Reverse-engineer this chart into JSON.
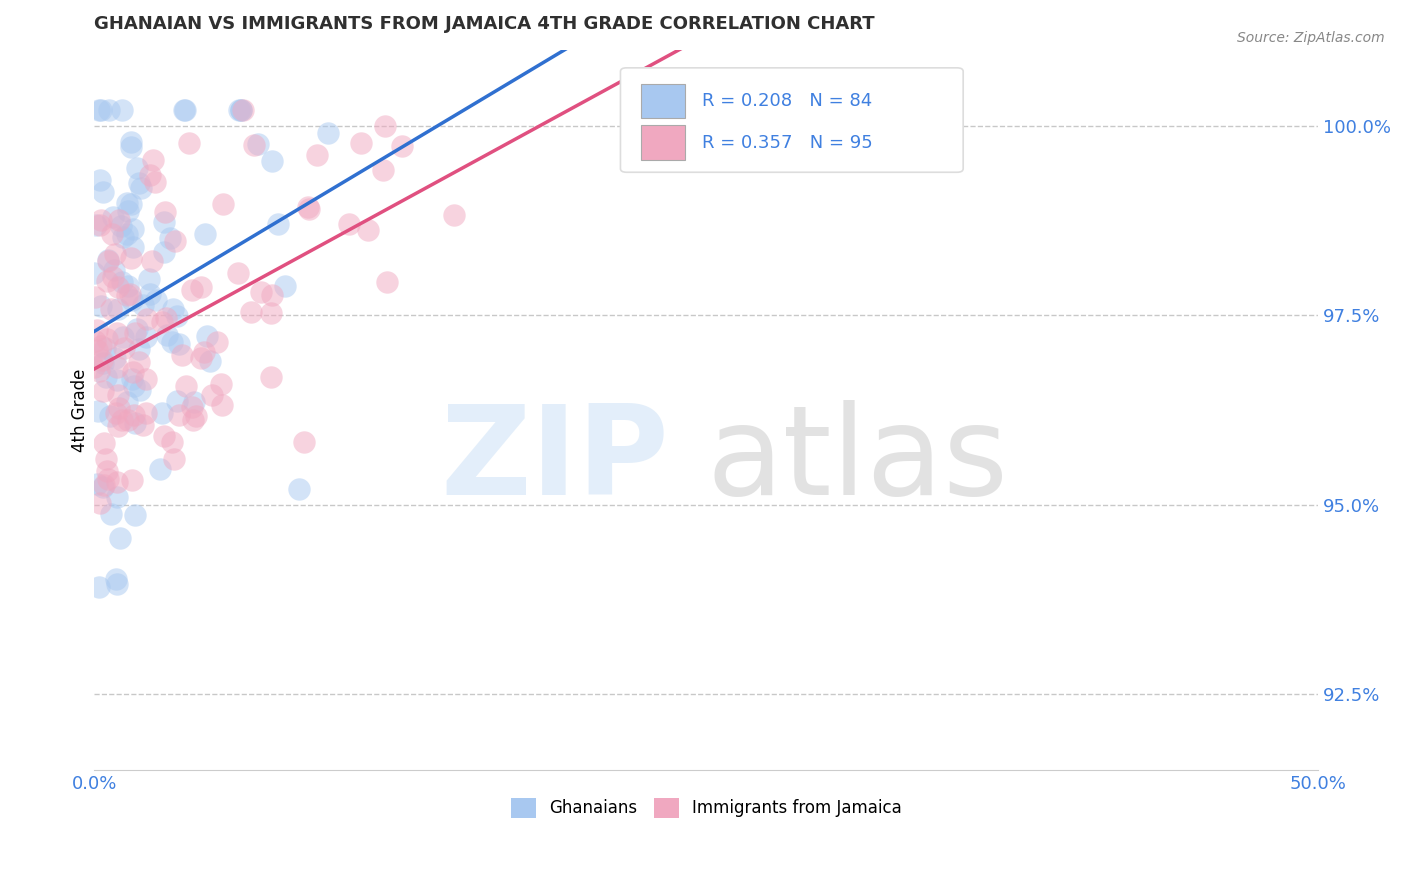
{
  "title": "GHANAIAN VS IMMIGRANTS FROM JAMAICA 4TH GRADE CORRELATION CHART",
  "source_text": "Source: ZipAtlas.com",
  "ylabel": "4th Grade",
  "xlim": [
    0.0,
    50.0
  ],
  "ylim": [
    91.5,
    101.0
  ],
  "yticks": [
    92.5,
    95.0,
    97.5,
    100.0
  ],
  "ytick_labels": [
    "92.5%",
    "95.0%",
    "97.5%",
    "100.0%"
  ],
  "xticks": [
    0.0,
    50.0
  ],
  "xtick_labels": [
    "0.0%",
    "50.0%"
  ],
  "legend_R_blue": "R = 0.208",
  "legend_N_blue": "N = 84",
  "legend_R_pink": "R = 0.357",
  "legend_N_pink": "N = 95",
  "legend_label_blue": "Ghanaians",
  "legend_label_pink": "Immigrants from Jamaica",
  "blue_color": "#A8C8F0",
  "pink_color": "#F0A8C0",
  "blue_line_color": "#3070D0",
  "pink_line_color": "#E05080",
  "background_color": "#FFFFFF",
  "grid_color": "#C8C8C8",
  "tick_color": "#4080E0",
  "title_color": "#303030",
  "source_color": "#888888"
}
